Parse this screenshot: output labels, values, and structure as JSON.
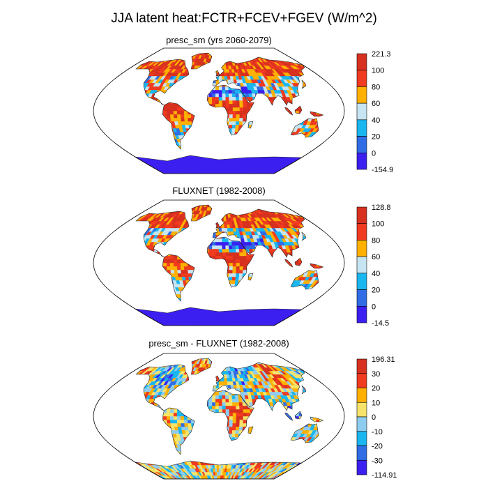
{
  "page_title": "JJA latent heat:FCTR+FCEV+FGEV (W/m^2)",
  "chart_data": [
    {
      "type": "heatmap",
      "projection": "robinson-world-map",
      "title": "presc_sm (yrs 2060-2079)",
      "colorbar": {
        "labels": [
          "221.3",
          "100",
          "80",
          "60",
          "40",
          "20",
          "0",
          "-154.9"
        ],
        "colors": [
          "#d7301f",
          "#f03b20",
          "#ffb000",
          "#c6e4f2",
          "#1ab6f0",
          "#2f6ce6",
          "#3b1ef0"
        ],
        "min": -154.9,
        "max": 221.3
      }
    },
    {
      "type": "heatmap",
      "projection": "robinson-world-map",
      "title": "FLUXNET (1982-2008)",
      "colorbar": {
        "labels": [
          "128.8",
          "100",
          "80",
          "60",
          "40",
          "20",
          "0",
          "-14.5"
        ],
        "colors": [
          "#d7301f",
          "#f03b20",
          "#ffb000",
          "#c6e4f2",
          "#1ab6f0",
          "#2f6ce6",
          "#3b1ef0"
        ],
        "min": -14.5,
        "max": 128.8
      }
    },
    {
      "type": "heatmap",
      "projection": "robinson-world-map",
      "title": "presc_sm - FLUXNET (1982-2008)",
      "colorbar": {
        "labels": [
          "196.31",
          "30",
          "20",
          "10",
          "0",
          "-10",
          "-20",
          "-30",
          "-114.91"
        ],
        "colors": [
          "#d7301f",
          "#f03b20",
          "#ffb000",
          "#f5e36a",
          "#8ecdf0",
          "#1ab6f0",
          "#2f6ce6",
          "#3b1ef0"
        ],
        "min": -114.91,
        "max": 196.31
      }
    }
  ]
}
